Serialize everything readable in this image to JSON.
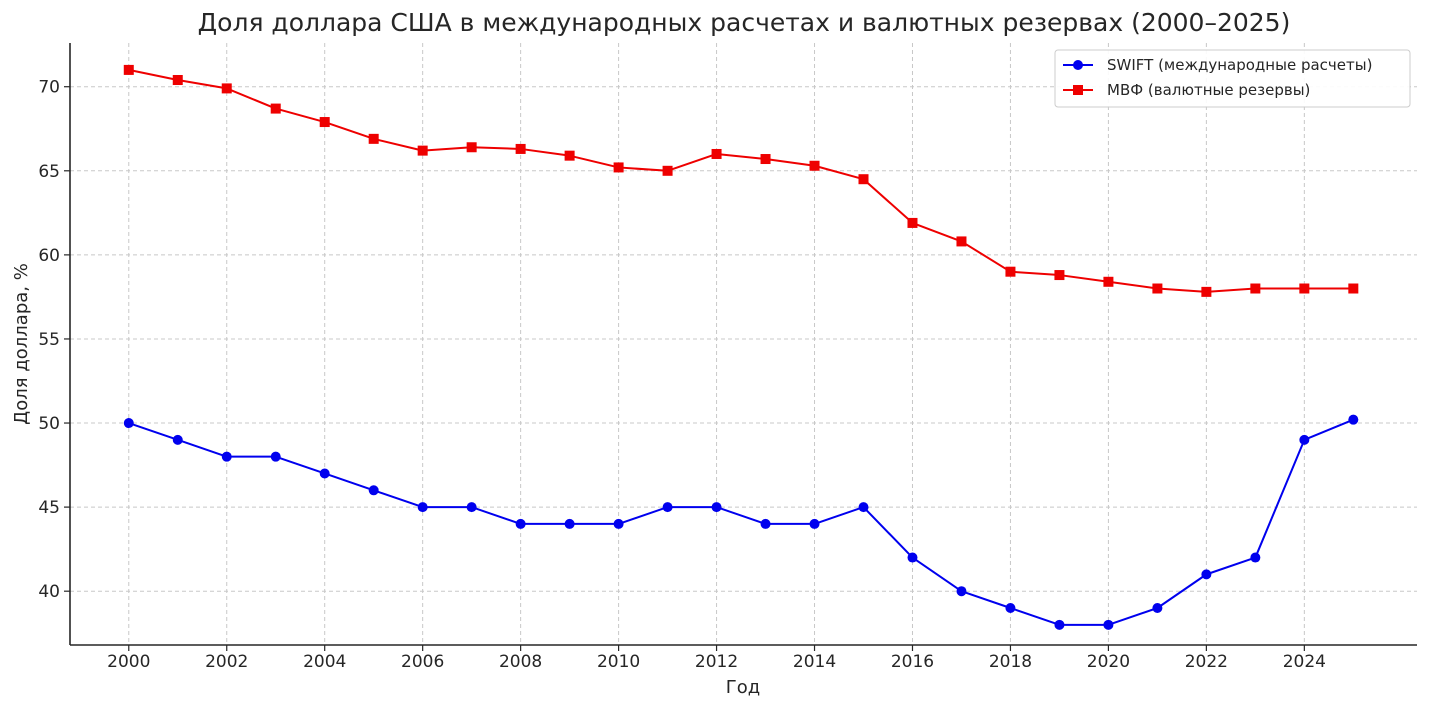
{
  "chart_data": {
    "type": "line",
    "title": "Доля доллара США в международных расчетах и валютных резервах (2000–2025)",
    "xlabel": "Год",
    "ylabel": "Доля доллара, %",
    "x": [
      2000,
      2001,
      2002,
      2003,
      2004,
      2005,
      2006,
      2007,
      2008,
      2009,
      2010,
      2011,
      2012,
      2013,
      2014,
      2015,
      2016,
      2017,
      2018,
      2019,
      2020,
      2021,
      2022,
      2023,
      2024,
      2025
    ],
    "xlim": [
      1998.8,
      2026.3
    ],
    "ylim": [
      36.8,
      72.6
    ],
    "xticks": [
      2000,
      2002,
      2004,
      2006,
      2008,
      2010,
      2012,
      2014,
      2016,
      2018,
      2020,
      2022,
      2024
    ],
    "yticks": [
      40,
      45,
      50,
      55,
      60,
      65,
      70
    ],
    "grid": true,
    "legend_position": "top-right",
    "series": [
      {
        "name": "SWIFT (международные расчеты)",
        "color": "#0000ee",
        "marker": "circle",
        "values": [
          50,
          49,
          48,
          48,
          47,
          46,
          45,
          45,
          44,
          44,
          44,
          45,
          45,
          44,
          44,
          45,
          42,
          40,
          39,
          38,
          38,
          39,
          41,
          42,
          49,
          50.2
        ]
      },
      {
        "name": "МВФ (валютные резервы)",
        "color": "#ee0000",
        "marker": "square",
        "values": [
          71,
          70.4,
          69.9,
          68.7,
          67.9,
          66.9,
          66.2,
          66.4,
          66.3,
          65.9,
          65.2,
          65.0,
          66.0,
          65.7,
          65.3,
          64.5,
          61.9,
          60.8,
          59.0,
          58.8,
          58.4,
          58.0,
          57.8,
          58.0,
          58.0,
          58.0
        ]
      }
    ]
  }
}
